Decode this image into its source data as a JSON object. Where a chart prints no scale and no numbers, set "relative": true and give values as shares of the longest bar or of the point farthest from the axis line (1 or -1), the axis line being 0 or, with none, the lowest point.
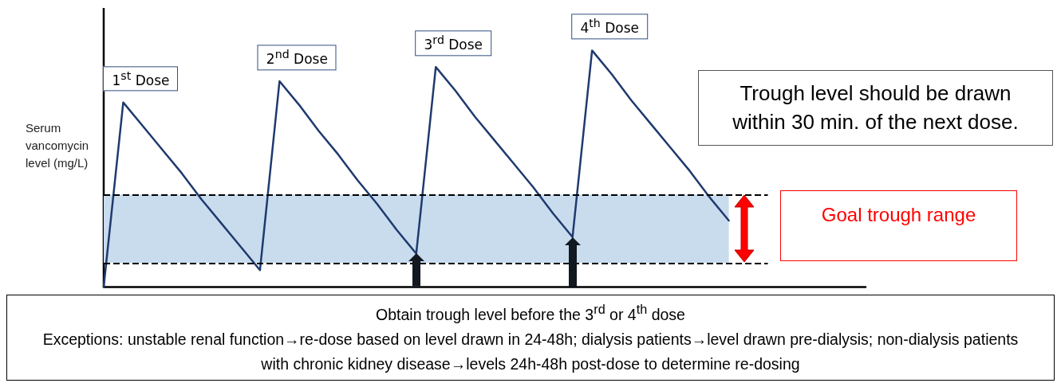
{
  "chart_data": {
    "type": "line",
    "relative": true,
    "ylabel": "Serum vancomycin level (mg/L)",
    "marker": "none",
    "line_style": "solid",
    "categories": [
      null,
      null,
      null,
      null,
      null,
      null,
      null,
      null,
      null,
      null,
      null,
      null,
      null,
      null,
      null,
      null,
      null,
      null,
      null,
      null,
      null,
      null,
      null,
      null,
      null,
      null,
      null,
      null,
      null,
      null,
      null,
      null,
      null,
      null,
      null,
      null,
      null,
      null,
      null,
      null
    ],
    "series": [
      {
        "color": "#1f3a6e",
        "values": [
          0,
          0.78,
          0.68,
          0.58,
          0.48,
          0.37,
          0.27,
          0.17,
          0.07,
          0.87,
          0.77,
          0.66,
          0.56,
          0.45,
          0.35,
          0.24,
          0.14,
          0.93,
          0.83,
          0.72,
          0.62,
          0.52,
          0.42,
          0.31,
          0.21,
          1,
          0.9,
          0.79,
          0.69,
          0.59,
          0.49,
          0.38,
          0.28,
          null,
          null,
          null,
          null,
          null,
          null,
          null
        ]
      }
    ],
    "bands": [
      {
        "axis": "y",
        "from": 0.1,
        "to": 0.39,
        "color": "#c9dcee"
      }
    ],
    "ref_lines": [
      {
        "axis": "y",
        "value": 0.1,
        "line_style": "dashed",
        "color": "#000000"
      },
      {
        "axis": "y",
        "value": 0.39,
        "line_style": "dashed",
        "color": "#000000"
      }
    ],
    "annotations": [
      "1$^{st}$ Dose",
      "2$^{nd}$ Dose",
      "3$^{rd}$ Dose",
      "4$^{th}$ Dose",
      "Trough level should be drawn within 30 min. of the next dose.",
      "Goal trough range",
      "Obtain trough level before the 3$^{rd}$ or 4$^{th}$ dose",
      "Exceptions: unstable renal function→re-dose based on level drawn in 24-48h; dialysis patients→level drawn pre-dialysis; non-dialysis patients with chronic kidney disease→levels 24h-48h post-dose to determine re-dosing"
    ]
  }
}
